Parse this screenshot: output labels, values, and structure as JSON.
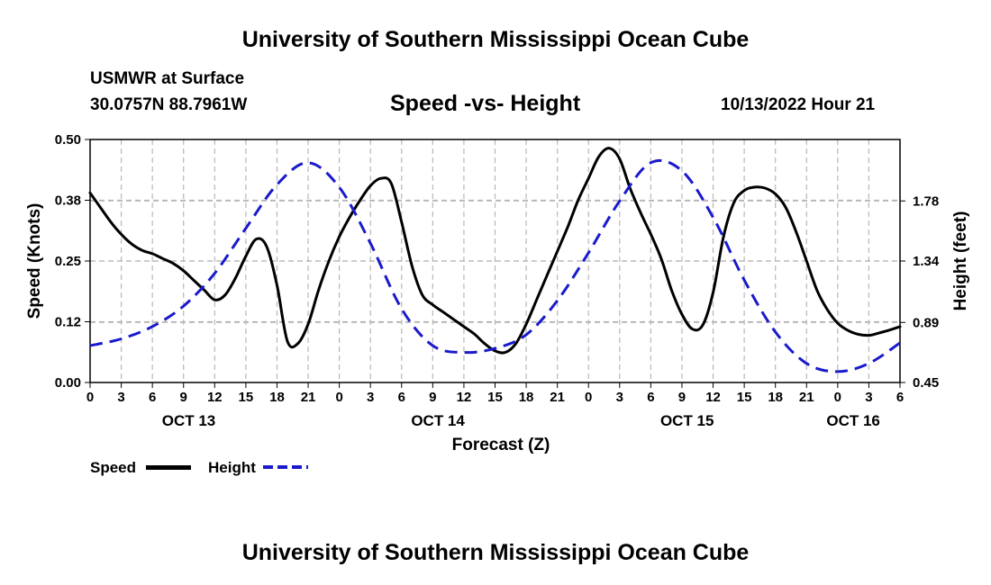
{
  "header": {
    "title": "University of Southern Mississippi Ocean Cube",
    "station": "USMWR at Surface",
    "coords": "30.0757N  88.7961W",
    "subtitle": "Speed -vs- Height",
    "datetime": "10/13/2022 Hour 21"
  },
  "footer": {
    "title": "University of Southern Mississippi Ocean Cube"
  },
  "legend": {
    "speed_label": "Speed",
    "height_label": "Height"
  },
  "chart_data": {
    "type": "line",
    "xlabel": "Forecast (Z)",
    "ylabel_left": "Speed (Knots)",
    "ylabel_right": "Height (feet)",
    "xlim": [
      0,
      78
    ],
    "ylim_left": [
      0,
      0.5
    ],
    "ylim_right": [
      0.45,
      2.23
    ],
    "left_ticks": [
      {
        "v": 0,
        "label": "0.00"
      },
      {
        "v": 0.125,
        "label": "0.12"
      },
      {
        "v": 0.25,
        "label": "0.25"
      },
      {
        "v": 0.375,
        "label": "0.38"
      },
      {
        "v": 0.5,
        "label": "0.50"
      }
    ],
    "right_ticks": [
      {
        "v": 0.45,
        "label": "0.45"
      },
      {
        "v": 0.89,
        "label": "0.89"
      },
      {
        "v": 1.34,
        "label": "1.34"
      },
      {
        "v": 1.78,
        "label": "1.78"
      }
    ],
    "x_ticks": [
      "0",
      "3",
      "6",
      "9",
      "12",
      "15",
      "18",
      "21",
      "0",
      "3",
      "6",
      "9",
      "12",
      "15",
      "18",
      "21",
      "0",
      "3",
      "6",
      "9",
      "12",
      "15",
      "18",
      "21",
      "0",
      "3",
      "6"
    ],
    "date_labels": [
      {
        "x": 9.5,
        "label": "OCT 13"
      },
      {
        "x": 33.5,
        "label": "OCT 14"
      },
      {
        "x": 57.5,
        "label": "OCT 15"
      },
      {
        "x": 73.5,
        "label": "OCT 16"
      }
    ],
    "grid": true,
    "series": [
      {
        "name": "Speed",
        "axis": "left",
        "color": "#000000",
        "dash": "solid",
        "x": [
          0,
          1,
          2,
          3,
          4,
          5,
          6,
          7,
          8,
          9,
          10,
          11,
          12,
          13,
          14,
          15,
          16,
          17,
          18,
          19,
          20,
          21,
          22,
          23,
          24,
          25,
          26,
          27,
          28,
          29,
          30,
          31,
          32,
          33,
          34,
          35,
          36,
          37,
          38,
          39,
          40,
          41,
          42,
          43,
          44,
          45,
          46,
          47,
          48,
          49,
          50,
          51,
          52,
          53,
          54,
          55,
          56,
          57,
          58,
          59,
          60,
          61,
          62,
          63,
          64,
          65,
          66,
          67,
          68,
          69,
          70,
          71,
          72,
          73,
          74,
          75,
          76,
          77,
          78
        ],
        "values": [
          0.39,
          0.36,
          0.33,
          0.305,
          0.285,
          0.272,
          0.265,
          0.255,
          0.245,
          0.23,
          0.21,
          0.19,
          0.17,
          0.18,
          0.215,
          0.26,
          0.295,
          0.28,
          0.2,
          0.085,
          0.08,
          0.12,
          0.19,
          0.25,
          0.3,
          0.34,
          0.375,
          0.405,
          0.42,
          0.41,
          0.33,
          0.24,
          0.18,
          0.16,
          0.145,
          0.13,
          0.115,
          0.1,
          0.08,
          0.065,
          0.062,
          0.08,
          0.12,
          0.17,
          0.22,
          0.27,
          0.32,
          0.375,
          0.42,
          0.465,
          0.482,
          0.46,
          0.4,
          0.35,
          0.305,
          0.255,
          0.19,
          0.14,
          0.11,
          0.118,
          0.185,
          0.3,
          0.37,
          0.395,
          0.402,
          0.4,
          0.388,
          0.36,
          0.31,
          0.25,
          0.19,
          0.15,
          0.122,
          0.107,
          0.099,
          0.097,
          0.102,
          0.108,
          0.115
        ]
      },
      {
        "name": "Height",
        "axis": "right",
        "color": "#1a1acc",
        "dash": "dashed",
        "x": [
          0,
          3,
          6,
          9,
          12,
          15,
          18,
          21,
          24,
          27,
          30,
          33,
          36,
          39,
          42,
          45,
          48,
          51,
          54,
          57,
          60,
          63,
          66,
          69,
          72,
          75,
          78
        ],
        "values": [
          0.72,
          0.77,
          0.86,
          1.01,
          1.25,
          1.58,
          1.9,
          2.06,
          1.88,
          1.47,
          0.99,
          0.72,
          0.67,
          0.7,
          0.8,
          1.05,
          1.4,
          1.78,
          2.06,
          2.0,
          1.66,
          1.2,
          0.82,
          0.59,
          0.53,
          0.59,
          0.74
        ]
      }
    ]
  }
}
